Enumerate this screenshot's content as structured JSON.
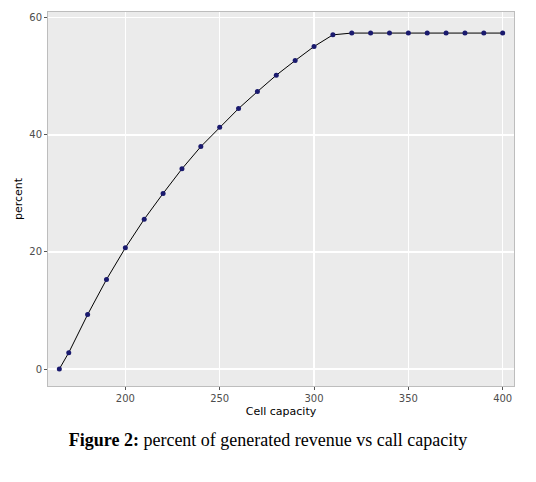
{
  "chart_data": {
    "type": "line",
    "title": "Figure 2: percent of generated revenue vs call capacity",
    "x_label": "Cell capacity",
    "y_label": "percent",
    "x": [
      165,
      170,
      180,
      190,
      200,
      210,
      220,
      230,
      240,
      250,
      260,
      270,
      280,
      290,
      300,
      310,
      320,
      330,
      340,
      350,
      360,
      370,
      380,
      390,
      400
    ],
    "values": [
      0,
      2.8,
      9.3,
      15.3,
      20.7,
      25.6,
      30.0,
      34.2,
      38.0,
      41.3,
      44.5,
      47.4,
      50.2,
      52.7,
      55.1,
      57.1,
      57.4,
      57.4,
      57.4,
      57.4,
      57.4,
      57.4,
      57.4,
      57.4,
      57.4
    ],
    "color": "#1a1a6e",
    "marker": "circle",
    "xlim": [
      159,
      406
    ],
    "xticks": [
      200,
      250,
      300,
      350,
      400
    ],
    "ylim": [
      -2.9,
      61
    ],
    "yticks": [
      0,
      20,
      40,
      60
    ],
    "grid": true
  }
}
